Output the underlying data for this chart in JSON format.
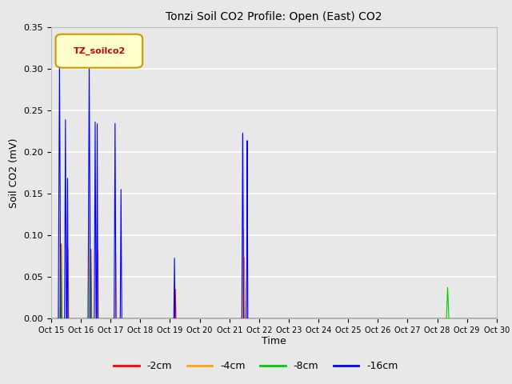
{
  "title": "Tonzi Soil CO2 Profile: Open (East) CO2",
  "ylabel": "Soil CO2 (mV)",
  "xlabel": "Time",
  "ylim": [
    0.0,
    0.35
  ],
  "legend_label": "TZ_soilco2",
  "series": {
    "-2cm": {
      "color": "#ff0000"
    },
    "-4cm": {
      "color": "#ffa500"
    },
    "-8cm": {
      "color": "#00cc00"
    },
    "-16cm": {
      "color": "#0000ff"
    }
  },
  "xtick_labels": [
    "Oct 15",
    "Oct 16",
    "Oct 17",
    "Oct 18",
    "Oct 19",
    "Oct 20",
    "Oct 21",
    "Oct 22",
    "Oct 23",
    "Oct 24",
    "Oct 25",
    "Oct 26",
    "Oct 27",
    "Oct 28",
    "Oct 29",
    "Oct 30"
  ],
  "plot_bg_color": "#e8e8e8",
  "fig_bg_color": "#e8e8e8",
  "grid_color": "#ffffff"
}
